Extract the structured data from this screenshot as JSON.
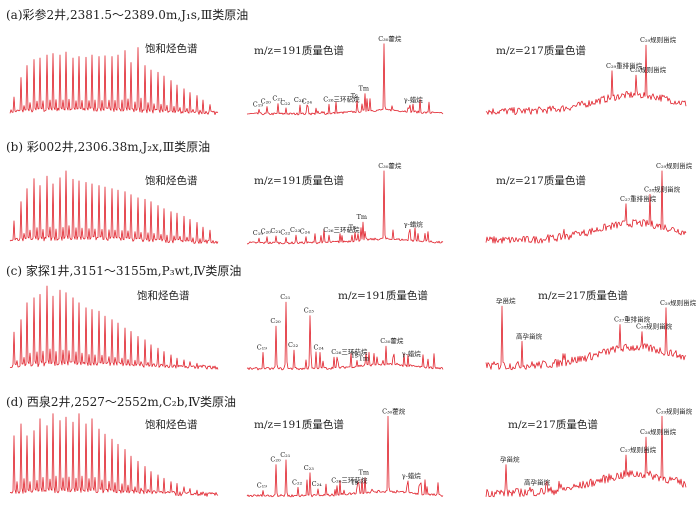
{
  "colors": {
    "trace": "#e0202a",
    "text": "#222222",
    "leader": "#1a3a8a",
    "background": "#ffffff"
  },
  "rows": [
    {
      "title": "(a)彩参2井,2381.5～2389.0m,J₁s,Ⅲ类原油",
      "charts": [
        {
          "label": "饱和烃色谱"
        },
        {
          "label": "m/z=191质量色谱"
        },
        {
          "label": "m/z=217质量色谱"
        }
      ]
    },
    {
      "title": "(b) 彩002井,2306.38m,J₂x,Ⅲ类原油",
      "charts": [
        {
          "label": "饱和烃色谱"
        },
        {
          "label": "m/z=191质量色谱"
        },
        {
          "label": "m/z=217质量色谱"
        }
      ]
    },
    {
      "title": "(c) 家探1井,3151～3155m,P₃wt,Ⅳ类原油",
      "charts": [
        {
          "label": "饱和烃色谱"
        },
        {
          "label": "m/z=191质量色谱"
        },
        {
          "label": "m/z=217质量色谱"
        }
      ]
    },
    {
      "title": "(d) 西泉2井,2527～2552m,C₂b,Ⅳ类原油",
      "charts": [
        {
          "label": "饱和烃色谱"
        },
        {
          "label": "m/z=191质量色谱"
        },
        {
          "label": "m/z=217质量色谱"
        }
      ]
    }
  ],
  "chart_data": [
    {
      "type": "line",
      "title": "饱和烃色谱",
      "row": "a",
      "series": [
        {
          "values": [
            0.24,
            0.5,
            0.66,
            0.74,
            0.76,
            0.8,
            0.82,
            0.8,
            0.84,
            0.76,
            0.78,
            0.77,
            0.8,
            0.78,
            0.79,
            0.78,
            0.8,
            0.86,
            0.7,
            0.9,
            0.66,
            0.6,
            0.57,
            0.52,
            0.46,
            0.4,
            0.35,
            0.3,
            0.26,
            0.2,
            0.14
          ]
        }
      ]
    },
    {
      "type": "line",
      "title": "m/z=191质量色谱",
      "row": "a",
      "annotations": [
        {
          "label": "C₁₉",
          "x": 0.06,
          "y": 0.08
        },
        {
          "label": "C₂₀",
          "x": 0.1,
          "y": 0.12
        },
        {
          "label": "C₂₁",
          "x": 0.16,
          "y": 0.16
        },
        {
          "label": "C₂₂",
          "x": 0.2,
          "y": 0.1
        },
        {
          "label": "C₂₃",
          "x": 0.27,
          "y": 0.14
        },
        {
          "label": "C₂₄",
          "x": 0.31,
          "y": 0.12
        },
        {
          "label": "C₂₆三环萜烷",
          "x": 0.42,
          "y": 0.15
        },
        {
          "label": "Ts",
          "x": 0.56,
          "y": 0.2
        },
        {
          "label": "Tm",
          "x": 0.6,
          "y": 0.3
        },
        {
          "label": "C₃₀藿烷",
          "x": 0.7,
          "y": 1.0
        },
        {
          "label": "γ-蜡烷",
          "x": 0.83,
          "y": 0.14
        }
      ]
    },
    {
      "type": "line",
      "title": "m/z=217质量色谱",
      "row": "a",
      "annotations": [
        {
          "label": "C₂₉规则甾烷",
          "x": 0.8,
          "y": 0.98
        },
        {
          "label": "C₂₉重排甾烷",
          "x": 0.63,
          "y": 0.62
        },
        {
          "label": "C₂₈规则甾烷",
          "x": 0.75,
          "y": 0.56
        }
      ]
    },
    {
      "type": "line",
      "title": "饱和烃色谱",
      "row": "b",
      "series": [
        {
          "values": [
            0.3,
            0.55,
            0.72,
            0.85,
            0.76,
            0.88,
            0.78,
            0.86,
            0.95,
            0.84,
            0.82,
            0.8,
            0.78,
            0.76,
            0.74,
            0.72,
            0.7,
            0.68,
            0.64,
            0.6,
            0.58,
            0.55,
            0.5,
            0.46,
            0.42,
            0.4,
            0.36,
            0.32,
            0.28,
            0.22,
            0.18
          ]
        }
      ]
    },
    {
      "type": "line",
      "title": "m/z=191质量色谱",
      "row": "b",
      "annotations": [
        {
          "label": "C₁₉",
          "x": 0.06,
          "y": 0.08
        },
        {
          "label": "C₂₀",
          "x": 0.1,
          "y": 0.1
        },
        {
          "label": "C₂₁",
          "x": 0.15,
          "y": 0.11
        },
        {
          "label": "C₂₂",
          "x": 0.2,
          "y": 0.09
        },
        {
          "label": "C₂₃",
          "x": 0.25,
          "y": 0.12
        },
        {
          "label": "C₂₄",
          "x": 0.3,
          "y": 0.1
        },
        {
          "label": "C₂₆三环萜烷",
          "x": 0.42,
          "y": 0.12
        },
        {
          "label": "Ts",
          "x": 0.55,
          "y": 0.16
        },
        {
          "label": "Tm",
          "x": 0.59,
          "y": 0.3
        },
        {
          "label": "C₃₀藿烷",
          "x": 0.7,
          "y": 1.0
        },
        {
          "label": "γ-蜡烷",
          "x": 0.83,
          "y": 0.2
        }
      ]
    },
    {
      "type": "line",
      "title": "m/z=217质量色谱",
      "row": "b",
      "annotations": [
        {
          "label": "C₂₉规则甾烷",
          "x": 0.88,
          "y": 1.0
        },
        {
          "label": "C₂₇重排甾烷",
          "x": 0.7,
          "y": 0.55
        },
        {
          "label": "C₂₈规则甾烷",
          "x": 0.82,
          "y": 0.68
        }
      ]
    },
    {
      "type": "line",
      "title": "饱和烃色谱",
      "row": "c",
      "series": [
        {
          "values": [
            0.45,
            0.6,
            0.8,
            0.86,
            0.9,
            1.0,
            0.88,
            0.95,
            0.92,
            0.86,
            0.8,
            0.74,
            0.72,
            0.7,
            0.64,
            0.6,
            0.56,
            0.5,
            0.46,
            0.4,
            0.36,
            0.3,
            0.26,
            0.22,
            0.18,
            0.14,
            0.12,
            0.1,
            0.08,
            0.06,
            0.05
          ]
        }
      ]
    },
    {
      "type": "line",
      "title": "m/z=191质量色谱",
      "row": "c",
      "annotations": [
        {
          "label": "C₁₉",
          "x": 0.08,
          "y": 0.22
        },
        {
          "label": "C₂₀",
          "x": 0.15,
          "y": 0.55
        },
        {
          "label": "C₂₁",
          "x": 0.2,
          "y": 0.85
        },
        {
          "label": "C₂₂",
          "x": 0.24,
          "y": 0.25
        },
        {
          "label": "C₂₃",
          "x": 0.32,
          "y": 0.68
        },
        {
          "label": "C₂₄",
          "x": 0.37,
          "y": 0.22
        },
        {
          "label": "C₂₆三环萜烷",
          "x": 0.46,
          "y": 0.16
        },
        {
          "label": "Ts",
          "x": 0.56,
          "y": 0.12
        },
        {
          "label": "Tm",
          "x": 0.6,
          "y": 0.08
        },
        {
          "label": "C₃₀藿烷",
          "x": 0.71,
          "y": 0.3
        },
        {
          "label": "γ-蜡烷",
          "x": 0.82,
          "y": 0.14
        }
      ]
    },
    {
      "type": "line",
      "title": "m/z=217质量色谱",
      "row": "c",
      "annotations": [
        {
          "label": "孕甾烷",
          "x": 0.08,
          "y": 0.8
        },
        {
          "label": "高孕甾烷",
          "x": 0.18,
          "y": 0.36
        },
        {
          "label": "C₂₉规则甾烷",
          "x": 0.9,
          "y": 0.78
        },
        {
          "label": "C₂₇重排甾烷",
          "x": 0.67,
          "y": 0.57
        },
        {
          "label": "C₂₈规则甾烷",
          "x": 0.78,
          "y": 0.48
        }
      ]
    },
    {
      "type": "line",
      "title": "饱和烃色谱",
      "row": "d",
      "series": [
        {
          "values": [
            0.72,
            0.86,
            0.72,
            0.78,
            0.92,
            0.84,
            0.98,
            0.9,
            0.94,
            0.88,
            0.98,
            0.86,
            0.92,
            0.8,
            0.74,
            0.68,
            0.62,
            0.56,
            0.48,
            0.42,
            0.36,
            0.3,
            0.26,
            0.22,
            0.18,
            0.16,
            0.12,
            0.1,
            0.08,
            0.06,
            0.05
          ]
        }
      ]
    },
    {
      "type": "line",
      "title": "m/z=191质量色谱",
      "row": "d",
      "annotations": [
        {
          "label": "C₁₉",
          "x": 0.08,
          "y": 0.08
        },
        {
          "label": "C₂₀",
          "x": 0.15,
          "y": 0.4
        },
        {
          "label": "C₂₁",
          "x": 0.2,
          "y": 0.46
        },
        {
          "label": "C₂₂",
          "x": 0.26,
          "y": 0.12
        },
        {
          "label": "C₂₃",
          "x": 0.32,
          "y": 0.3
        },
        {
          "label": "C₂₄",
          "x": 0.36,
          "y": 0.1
        },
        {
          "label": "C₂₆三环萜烷",
          "x": 0.46,
          "y": 0.14
        },
        {
          "label": "Ts",
          "x": 0.56,
          "y": 0.12
        },
        {
          "label": "Tm",
          "x": 0.6,
          "y": 0.24
        },
        {
          "label": "C₃₀藿烷",
          "x": 0.72,
          "y": 1.0
        },
        {
          "label": "γ-蜡烷",
          "x": 0.82,
          "y": 0.2
        }
      ]
    },
    {
      "type": "line",
      "title": "m/z=217质量色谱",
      "row": "d",
      "annotations": [
        {
          "label": "孕甾烷",
          "x": 0.1,
          "y": 0.4
        },
        {
          "label": "高孕甾烷",
          "x": 0.22,
          "y": 0.12
        },
        {
          "label": "C₂₉规则甾烷",
          "x": 0.88,
          "y": 1.0
        },
        {
          "label": "C₂₇规则甾烷",
          "x": 0.7,
          "y": 0.52
        },
        {
          "label": "C₂₈规则甾烷",
          "x": 0.8,
          "y": 0.74
        }
      ]
    }
  ]
}
